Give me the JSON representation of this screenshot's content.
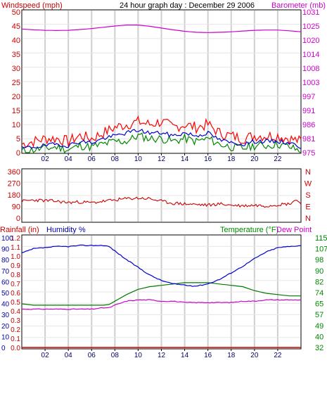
{
  "header": {
    "left_label": "Windspeed (mph)",
    "title": "24 hour graph day : December 29 2006",
    "right_label": "Barometer (mb)"
  },
  "bottom_header": {
    "rainfall_label": "Rainfall (in)",
    "humidity_label": "Humidity %",
    "temperature_label": "Temperature (°F)",
    "dewpoint_label": "Dew Point"
  },
  "colors": {
    "wind_avg": "#0000cc",
    "wind_gust": "#ff0000",
    "wind_low": "#008800",
    "barometer": "#cc00cc",
    "direction": "#cc0000",
    "humidity": "#0000cc",
    "rainfall": "#cc0000",
    "temperature": "#007700",
    "dewpoint": "#cc00cc",
    "grid": "#cfcfcf",
    "axis_left": "#cc0000",
    "axis_right_top": "#cc00cc",
    "axis_right_bottom": "#008800",
    "axis_humidity": "#0000aa"
  },
  "x_ticks": [
    "02",
    "04",
    "06",
    "08",
    "10",
    "12",
    "14",
    "16",
    "18",
    "20",
    "22"
  ],
  "chart_data": [
    {
      "type": "line",
      "title": "24 hour graph day : December 29 2006",
      "ylabel": "Windspeed (mph)",
      "ylabel_right": "Barometer (mb)",
      "yticks_left": [
        "50",
        "45",
        "40",
        "35",
        "30",
        "25",
        "20",
        "15",
        "10",
        "5",
        "0"
      ],
      "yticks_right": [
        "1031",
        "1025",
        "1020",
        "1014",
        "1008",
        "1003",
        "997",
        "991",
        "986",
        "981",
        "975"
      ],
      "ylim": [
        0,
        50
      ],
      "ylim_right": [
        975,
        1031
      ],
      "xlim": [
        0,
        24
      ],
      "grid": true,
      "series": [
        {
          "key": "gust",
          "x": [
            0,
            1,
            2,
            3,
            4,
            5,
            6,
            7,
            8,
            9,
            10,
            11,
            12,
            13,
            14,
            15,
            16,
            17,
            18,
            19,
            20,
            21,
            22,
            23,
            24
          ],
          "values": [
            3,
            4,
            5,
            5,
            4,
            6,
            5,
            7,
            9,
            10,
            11,
            10,
            11,
            9,
            10,
            9,
            10,
            7,
            6,
            5,
            6,
            6,
            6,
            5,
            4
          ]
        },
        {
          "key": "average",
          "x": [
            0,
            1,
            2,
            3,
            4,
            5,
            6,
            7,
            8,
            9,
            10,
            11,
            12,
            13,
            14,
            15,
            16,
            17,
            18,
            19,
            20,
            21,
            22,
            23,
            24
          ],
          "values": [
            1.5,
            2,
            2.5,
            3,
            2.5,
            4,
            3.5,
            5,
            6,
            7,
            8,
            7,
            7,
            6,
            7,
            6,
            7,
            4.5,
            3.5,
            3,
            4,
            4,
            4,
            3.5,
            2
          ]
        },
        {
          "key": "low",
          "x": [
            0,
            1,
            2,
            3,
            4,
            5,
            6,
            7,
            8,
            9,
            10,
            11,
            12,
            13,
            14,
            15,
            16,
            17,
            18,
            19,
            20,
            21,
            22,
            23,
            24
          ],
          "values": [
            0.5,
            1,
            1.5,
            2,
            1,
            2.5,
            2,
            3,
            4,
            4,
            6,
            5,
            5,
            4,
            5,
            4,
            5,
            3,
            2,
            1.5,
            2.5,
            2.5,
            3,
            2,
            0.5
          ]
        },
        {
          "key": "barometer",
          "axis": "right",
          "x": [
            0,
            1,
            2,
            3,
            4,
            5,
            6,
            7,
            8,
            9,
            10,
            11,
            12,
            13,
            14,
            15,
            16,
            17,
            18,
            19,
            20,
            21,
            22,
            23,
            24
          ],
          "values": [
            1024.2,
            1023.9,
            1023.7,
            1023.6,
            1023.7,
            1024.0,
            1024.4,
            1024.9,
            1025.4,
            1025.8,
            1025.8,
            1025.3,
            1024.6,
            1023.9,
            1023.3,
            1022.9,
            1022.8,
            1022.9,
            1023.1,
            1023.4,
            1023.7,
            1023.8,
            1023.8,
            1023.5,
            1023.1
          ]
        }
      ]
    },
    {
      "type": "line",
      "yticks_left": [
        "360",
        "270",
        "180",
        "90",
        "0"
      ],
      "yticks_right": [
        "N",
        "W",
        "S",
        "E",
        "N"
      ],
      "ylim": [
        0,
        360
      ],
      "xlim": [
        0,
        24
      ],
      "grid": true,
      "series": [
        {
          "key": "wind_direction",
          "x": [
            0,
            1,
            2,
            3,
            4,
            5,
            6,
            7,
            8,
            9,
            10,
            11,
            12,
            13,
            14,
            15,
            16,
            17,
            18,
            19,
            20,
            21,
            22,
            23,
            23.5,
            24
          ],
          "values": [
            130,
            140,
            135,
            130,
            120,
            125,
            118,
            130,
            140,
            150,
            155,
            150,
            130,
            115,
            110,
            105,
            100,
            110,
            100,
            95,
            100,
            95,
            105,
            110,
            140,
            120
          ]
        }
      ]
    },
    {
      "type": "line",
      "yticks_rain": [
        "1.2",
        "1.1",
        "1.0",
        "0.9",
        "0.8",
        "0.7",
        "0.6",
        "0.5",
        "0.4",
        "0.3",
        "0.2",
        "0.1",
        "0.0"
      ],
      "yticks_humidity": [
        "100",
        "90",
        "80",
        "70",
        "60",
        "50",
        "40",
        "30",
        "20",
        "10",
        "0"
      ],
      "yticks_right": [
        "115",
        "107",
        "98",
        "90",
        "82",
        "74",
        "65",
        "57",
        "49",
        "40",
        "32"
      ],
      "ylim": [
        0,
        100
      ],
      "ylim_right": [
        32,
        115
      ],
      "xlim": [
        0,
        24
      ],
      "grid": true,
      "series": [
        {
          "key": "humidity",
          "x": [
            0,
            0.5,
            1,
            2,
            3,
            4,
            5,
            6,
            7,
            7.5,
            8,
            9,
            10,
            11,
            12,
            13,
            14,
            14.5,
            15,
            16,
            17,
            18,
            19,
            20,
            21,
            22,
            23,
            24
          ],
          "values": [
            86,
            88,
            90,
            91,
            92,
            92,
            93,
            93,
            93,
            92,
            88,
            80,
            73,
            66,
            61,
            58,
            57,
            56,
            56,
            58,
            62,
            68,
            74,
            81,
            87,
            91,
            92,
            93
          ]
        },
        {
          "key": "rainfall",
          "x": [
            0,
            24
          ],
          "values": [
            0,
            0
          ]
        },
        {
          "key": "temperature",
          "axis": "right",
          "x": [
            0,
            1,
            2,
            3,
            4,
            5,
            6,
            7,
            7.5,
            8,
            9,
            10,
            11,
            12,
            13,
            14,
            15,
            16,
            17,
            18,
            19,
            20,
            21,
            22,
            23,
            24
          ],
          "values": [
            65,
            64,
            64,
            64,
            64,
            64,
            64,
            64,
            64.5,
            67,
            72,
            76,
            78,
            79,
            80,
            81,
            81,
            81,
            80,
            79,
            78,
            75,
            73,
            72,
            71,
            71
          ]
        },
        {
          "key": "dewpoint",
          "axis": "right",
          "x": [
            0,
            1,
            2,
            3,
            4,
            5,
            6,
            7,
            7.5,
            8,
            9,
            10,
            11,
            12,
            13,
            14,
            15,
            16,
            17,
            18,
            19,
            20,
            21,
            22,
            23,
            24
          ],
          "values": [
            61,
            61,
            61,
            61,
            61,
            61,
            61,
            62,
            62,
            64,
            67,
            68,
            68,
            67,
            67,
            66,
            66,
            66,
            66,
            66,
            67,
            67,
            68,
            68,
            68,
            68
          ]
        }
      ]
    }
  ]
}
